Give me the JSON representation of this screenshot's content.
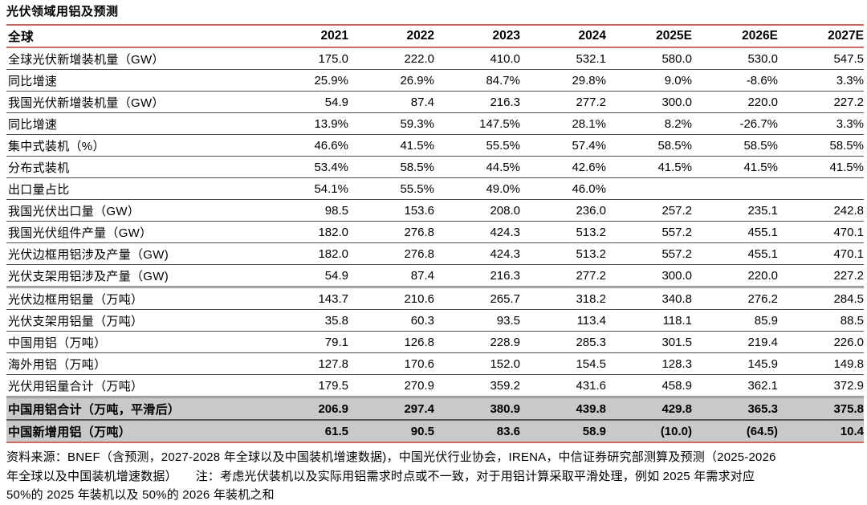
{
  "title": "光伏领域用铝及预测",
  "table": {
    "header": [
      "全球",
      "2021",
      "2022",
      "2023",
      "2024",
      "2025E",
      "2026E",
      "2027E"
    ],
    "rows": [
      {
        "label": "全球光伏新增装机量（GW）",
        "values": [
          "175.0",
          "222.0",
          "410.0",
          "532.1",
          "580.0",
          "530.0",
          "547.5"
        ],
        "highlight": false
      },
      {
        "label": "同比增速",
        "values": [
          "25.9%",
          "26.9%",
          "84.7%",
          "29.8%",
          "9.0%",
          "-8.6%",
          "3.3%"
        ],
        "highlight": false
      },
      {
        "label": "我国光伏新增装机量（GW）",
        "values": [
          "54.9",
          "87.4",
          "216.3",
          "277.2",
          "300.0",
          "220.0",
          "227.2"
        ],
        "highlight": false
      },
      {
        "label": "同比增速",
        "values": [
          "13.9%",
          "59.3%",
          "147.5%",
          "28.1%",
          "8.2%",
          "-26.7%",
          "3.3%"
        ],
        "highlight": false
      },
      {
        "label": "集中式装机（%）",
        "values": [
          "46.6%",
          "41.5%",
          "55.5%",
          "57.4%",
          "58.5%",
          "58.5%",
          "58.5%"
        ],
        "highlight": false
      },
      {
        "label": "分布式装机",
        "values": [
          "53.4%",
          "58.5%",
          "44.5%",
          "42.6%",
          "41.5%",
          "41.5%",
          "41.5%"
        ],
        "highlight": false
      },
      {
        "label": "出口量占比",
        "values": [
          "54.1%",
          "55.5%",
          "49.0%",
          "46.0%",
          "",
          "",
          ""
        ],
        "highlight": false
      },
      {
        "label": "我国光伏出口量（GW）",
        "values": [
          "98.5",
          "153.6",
          "208.0",
          "236.0",
          "257.2",
          "235.1",
          "242.8"
        ],
        "highlight": false
      },
      {
        "label": "我国光伏组件产量（GW）",
        "values": [
          "182.0",
          "276.8",
          "424.3",
          "513.2",
          "557.2",
          "455.1",
          "470.1"
        ],
        "highlight": false
      },
      {
        "label": "光伏边框用铝涉及产量（GW)",
        "values": [
          "182.0",
          "276.8",
          "424.3",
          "513.2",
          "557.2",
          "455.1",
          "470.1"
        ],
        "highlight": false
      },
      {
        "label": "光伏支架用铝涉及产量（GW)",
        "values": [
          "54.9",
          "87.4",
          "216.3",
          "277.2",
          "300.0",
          "220.0",
          "227.2"
        ],
        "highlight": false
      },
      {
        "label": "光伏边框用铝量（万吨）",
        "values": [
          "143.7",
          "210.6",
          "265.7",
          "318.2",
          "340.8",
          "276.2",
          "284.5"
        ],
        "highlight": false
      },
      {
        "label": "光伏支架用铝量（万吨）",
        "values": [
          "35.8",
          "60.3",
          "93.5",
          "113.4",
          "118.1",
          "85.9",
          "88.5"
        ],
        "highlight": false
      },
      {
        "label": "中国用铝（万吨）",
        "values": [
          "79.1",
          "126.8",
          "228.9",
          "285.3",
          "301.5",
          "219.4",
          "226.0"
        ],
        "highlight": false
      },
      {
        "label": "海外用铝（万吨）",
        "values": [
          "127.8",
          "170.6",
          "152.0",
          "154.5",
          "128.3",
          "145.9",
          "149.8"
        ],
        "highlight": false
      },
      {
        "label": "光伏用铝量合计（万吨）",
        "values": [
          "179.5",
          "270.9",
          "359.2",
          "431.6",
          "458.9",
          "362.1",
          "372.9"
        ],
        "highlight": false
      },
      {
        "label": "中国用铝合计（万吨，平滑后）",
        "values": [
          "206.9",
          "297.4",
          "380.9",
          "439.8",
          "429.8",
          "365.3",
          "375.8"
        ],
        "highlight": true
      },
      {
        "label": "中国新增用铝（万吨）",
        "values": [
          "61.5",
          "90.5",
          "83.6",
          "58.9",
          "(10.0)",
          "(64.5)",
          "10.4"
        ],
        "highlight": true
      }
    ]
  },
  "footer": {
    "line1": "资料来源：BNEF（含预测，2027-2028 年全球以及中国装机增速数据)，中国光伏行业协会，IRENA，中信证券研究部测算及预测（2025-2026",
    "line2": "年全球以及中国装机增速数据）　　注：考虑光伏装机以及实际用铝需求时点或不一致，对于用铝计算采取平滑处理，例如 2025 年需求对应",
    "line3": "50%的 2025 年装机以及 50%的 2026 年装机之和"
  },
  "colors": {
    "rule_red": "#cf6b62",
    "row_line_gray": "#4d4d4d",
    "highlight_bg": "#c9c9c9"
  }
}
